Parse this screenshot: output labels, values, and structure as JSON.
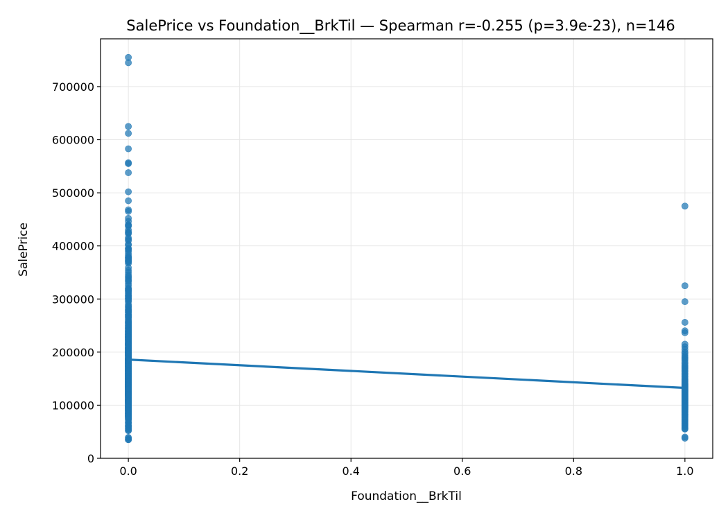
{
  "chart_data": {
    "type": "scatter",
    "title": "SalePrice vs Foundation__BrkTil — Spearman r=-0.255 (p=3.9e-23), n=146",
    "xlabel": "Foundation__BrkTil",
    "ylabel": "SalePrice",
    "xlim": [
      -0.05,
      1.05
    ],
    "ylim": [
      0,
      790000
    ],
    "grid": true,
    "x_ticks": [
      0.0,
      0.2,
      0.4,
      0.6,
      0.8,
      1.0
    ],
    "x_tick_labels": [
      "0.0",
      "0.2",
      "0.4",
      "0.6",
      "0.8",
      "1.0"
    ],
    "y_ticks": [
      0,
      100000,
      200000,
      300000,
      400000,
      500000,
      600000,
      700000
    ],
    "y_tick_labels": [
      "0",
      "100000",
      "200000",
      "300000",
      "400000",
      "500000",
      "600000",
      "700000"
    ],
    "point_color": "#1f77b4",
    "line_color": "#1f77b4",
    "series": [
      {
        "x": 0,
        "values": [
          755000,
          745000,
          625000,
          612000,
          582900,
          556581,
          555000,
          538000,
          501837,
          485000,
          468000,
          465000,
          451950,
          446261,
          440000,
          438780,
          437154,
          430000,
          426000,
          424870,
          423000,
          415298,
          412500,
          410000,
          402861,
          402000,
          395192,
          395000,
          392500,
          390000,
          385000,
          381000,
          378500,
          377500,
          377426,
          375000,
          372500,
          372402,
          370878,
          369900,
          367294,
          359100,
          354000,
          350000,
          345474,
          342643,
          340000,
          337500,
          335000,
          333168,
          328900,
          325000,
          320000,
          319900,
          318000,
          317000,
          315500,
          315000,
          312500,
          310000,
          307000,
          305900,
          305000,
          302000,
          301500,
          300000,
          299800,
          297000,
          295000,
          290000,
          287000,
          285000,
          282922,
          280000,
          279500,
          278000,
          277000,
          275000,
          274900,
          271000,
          270000,
          269790,
          268000,
          266500,
          265979,
          265000,
          262500,
          260000,
          258000,
          257500,
          255500,
          255000,
          254900,
          253293,
          252000,
          250580,
          250000,
          248900,
          248000,
          246578,
          245500,
          245000,
          244600,
          244000,
          242000,
          241500,
          240000,
          239900,
          239686,
          239500,
          239000,
          238000,
          237500,
          236500,
          236000,
          235128,
          235000,
          234000,
          233230,
          233170,
          233000,
          232600,
          232000,
          231500,
          230500,
          230000,
          229456,
          229000,
          228950,
          228500,
          228000,
          227875,
          227680,
          227000,
          226700,
          226000,
          225000,
          224900,
          224500,
          224000,
          223500,
          223000,
          222500,
          222000,
          221500,
          221000,
          220000,
          219500,
          219210,
          218000,
          217500,
          217000,
          216837,
          216500,
          216000,
          215200,
          215000,
          214900,
          214500,
          214000,
          213500,
          213490,
          213250,
          213000,
          212900,
          212000,
          211000,
          210000,
          209500,
          208900,
          208500,
          208300,
          208000,
          207500,
          207000,
          206900,
          206300,
          206000,
          205950,
          205000,
          204900,
          204750,
          204000,
          203000,
          202900,
          202665,
          202500,
          202000,
          201800,
          201000,
          200624,
          200500,
          200141,
          200100,
          200000,
          199900,
          199500,
          199000,
          198900,
          198500,
          197900,
          197500,
          197000,
          196500,
          196000,
          195400,
          195000,
          194700,
          194500,
          194201,
          194000,
          193879,
          193500,
          193000,
          192500,
          192140,
          192000,
          191000,
          190000,
          189950,
          189000,
          188700,
          188500,
          188000,
          187750,
          187500,
          187100,
          187000,
          186700,
          186500,
          186000,
          185900,
          185850,
          185750,
          185500,
          185000,
          184900,
          184750,
          184100,
          184000,
          183900,
          183500,
          183200,
          183000,
          182900,
          182500,
          182000,
          181900,
          181500,
          181134,
          181000,
          180500,
          180000,
          179900,
          179600,
          179540,
          179400,
          179200,
          179000,
          178900,
          178740,
          178400,
          178000,
          177500,
          177000,
          176485,
          176432,
          176000,
          175900,
          175500,
          175000,
          174900,
          174500,
          174000,
          173900,
          173733,
          173500,
          173000,
          172785,
          172500,
          172400,
          172000,
          171900,
          171750,
          171500,
          171000,
          170000,
          169990,
          169500,
          169000,
          168500,
          168000,
          167900,
          167500,
          167240,
          167000,
          166000,
          165600,
          165500,
          165400,
          165150,
          165000,
          164990,
          164900,
          164700,
          164500,
          164000,
          163990,
          163900,
          163500,
          163000,
          162900,
          162500,
          162000,
          161750,
          161500,
          161000,
          160200,
          160000,
          159950,
          159895,
          159500,
          159434,
          159000,
          158900,
          158500,
          158000,
          157900,
          157500,
          157000,
          156932,
          156500,
          156000,
          155900,
          155835,
          155000,
          154900,
          154500,
          154300,
          154000,
          153900,
          153575,
          153500,
          153337,
          153000,
          152000,
          151500,
          151400,
          151000,
          150900,
          150750,
          150500,
          150000,
          149900,
          149700,
          149500,
          149350,
          149300,
          149000,
          148800,
          148500,
          148000,
          147500,
          147400,
          147000,
          146800,
          146500,
          146000,
          145900,
          145500,
          145250,
          145000,
          144900,
          144500,
          144152,
          144000,
          143900,
          143750,
          143500,
          143250,
          143000,
          142953,
          142600,
          142500,
          142125,
          142000,
          141500,
          141000,
          140200,
          140000,
          139950,
          139900,
          139600,
          139500,
          139400,
          139000,
          138887,
          138800,
          138500,
          138000,
          137900,
          137500,
          137450,
          137000,
          136905,
          136900,
          136500,
          136000,
          135960,
          135900,
          135750,
          135500,
          135000,
          134900,
          134800,
          134500,
          134450,
          134432,
          134000,
          133900,
          133700,
          133500,
          133000,
          132500,
          132250,
          132000,
          131500,
          131400,
          131000,
          130500,
          130250,
          130000,
          129900,
          129500,
          129000,
          128950,
          128900,
          128500,
          128200,
          128000,
          127500,
          127000,
          126500,
          126175,
          126000,
          125500,
          125000,
          124900,
          124500,
          124000,
          123600,
          123500,
          123000,
          122900,
          122500,
          122000,
          121600,
          121500,
          121000,
          120500,
          120000,
          119900,
          119750,
          119500,
          119200,
          119000,
          118964,
          118858,
          118500,
          118400,
          118000,
          117500,
          117000,
          116900,
          116500,
          116050,
          116000,
          115000,
          114504,
          114500,
          114000,
          113000,
          112500,
          112000,
          111500,
          111250,
          111000,
          110500,
          110000,
          109900,
          109500,
          109008,
          109000,
          108959,
          108500,
          108480,
          108000,
          107900,
          107500,
          107400,
          107000,
          106500,
          106250,
          106000,
          105900,
          105500,
          105000,
          104900,
          104000,
          103600,
          103200,
          103000,
          102776,
          102000,
          101800,
          101000,
          100000,
          99900,
          99500,
          98600,
          98300,
          98000,
          97500,
          97000,
          96900,
          96500,
          96000,
          95000,
          94750,
          94500,
          94000,
          93500,
          93000,
          92900,
          92000,
          91500,
          91300,
          91000,
          90350,
          90000,
          89500,
          89471,
          89000,
          88000,
          87500,
          87000,
          86000,
          85500,
          85400,
          85000,
          84900,
          84500,
          84000,
          83500,
          83000,
          82500,
          82000,
          81000,
          80500,
          80000,
          79900,
          79500,
          79000,
          78500,
          78000,
          76500,
          76000,
          75500,
          75000,
          73000,
          72500,
          68500,
          67000,
          66500,
          62383,
          61000,
          60000,
          58500,
          55993,
          55000,
          52500,
          52000,
          39300,
          37900,
          35311,
          34900
        ]
      },
      {
        "x": 1,
        "values": [
          475000,
          325000,
          295000,
          256000,
          240000,
          236500,
          215000,
          210000,
          205000,
          200000,
          197000,
          193000,
          190000,
          187500,
          185000,
          181000,
          178000,
          175000,
          172500,
          170000,
          168000,
          165000,
          163000,
          160000,
          158000,
          155000,
          153000,
          150000,
          148000,
          146000,
          145000,
          143000,
          141000,
          140000,
          139000,
          138000,
          137000,
          136000,
          135000,
          134000,
          133000,
          132000,
          131000,
          130000,
          129000,
          128000,
          127000,
          126000,
          125000,
          124000,
          123000,
          122000,
          121000,
          120000,
          119000,
          118000,
          117000,
          116000,
          115000,
          114000,
          113000,
          112000,
          111000,
          110000,
          109000,
          108000,
          107000,
          106000,
          105000,
          104000,
          103000,
          102000,
          101000,
          100000,
          99000,
          98000,
          97000,
          96000,
          95000,
          94000,
          93000,
          92000,
          91000,
          90000,
          88000,
          87000,
          85000,
          83000,
          82000,
          80000,
          78000,
          76000,
          74000,
          72000,
          70000,
          68000,
          66000,
          64000,
          62000,
          60000,
          58000,
          56000,
          55000,
          40000,
          37900
        ]
      }
    ],
    "trend_line": {
      "x": [
        0,
        1
      ],
      "y": [
        185900,
        132500
      ]
    }
  }
}
